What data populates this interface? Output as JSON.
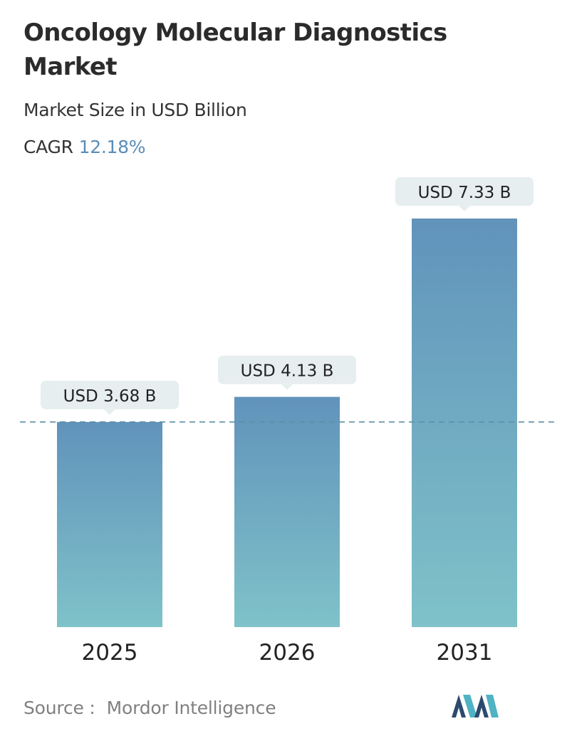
{
  "title": "Oncology Molecular Diagnostics Market",
  "subtitle": "Market Size in USD Billion",
  "cagr": {
    "label": "CAGR",
    "value": "12.18%"
  },
  "chart_data": {
    "type": "bar",
    "categories": [
      "2025",
      "2026",
      "2031"
    ],
    "values": [
      3.68,
      4.13,
      7.33
    ],
    "value_labels": [
      "USD 3.68 B",
      "USD 4.13 B",
      "USD 7.33 B"
    ],
    "title": "Oncology Molecular Diagnostics Market",
    "subtitle": "Market Size in USD Billion",
    "xlabel": "",
    "ylabel": "",
    "ylim": [
      0,
      7.33
    ],
    "grid": false,
    "reference_line": {
      "value": 3.68,
      "style": "dashed"
    },
    "colors": {
      "bar_top": "#6193bb",
      "bar_bottom": "#7fc2c9",
      "label_bg": "#e6eeef",
      "reference_line": "#5d8fa6"
    }
  },
  "source": {
    "label": "Source :",
    "value": "Mordor Intelligence"
  },
  "logo": {
    "icon": "mordor-intelligence-logo",
    "colors": [
      "#2c4a6e",
      "#4fb3c4"
    ]
  }
}
